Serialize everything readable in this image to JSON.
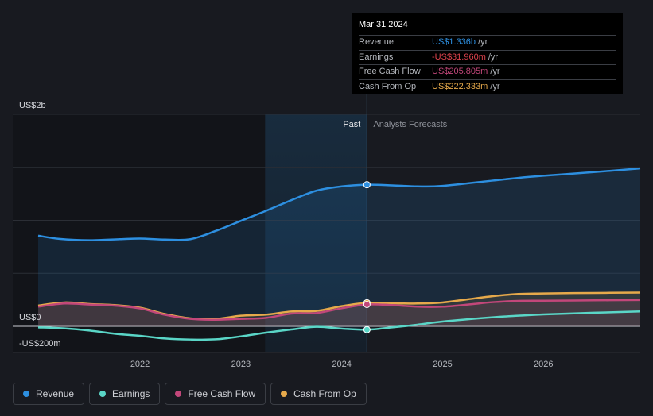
{
  "chart_data": {
    "type": "line",
    "title": "",
    "xlabel": "",
    "ylabel": "",
    "y_unit_labels": [
      "US$2b",
      "US$0",
      "-US$200m"
    ],
    "ylim": [
      -200,
      2000
    ],
    "x_ticks": [
      {
        "label": "2022",
        "t": 2022.0
      },
      {
        "label": "2023",
        "t": 2023.0
      },
      {
        "label": "2024",
        "t": 2024.0
      },
      {
        "label": "2025",
        "t": 2025.0
      },
      {
        "label": "2026",
        "t": 2026.0
      }
    ],
    "xlim": [
      2020.75,
      2026.96
    ],
    "highlight_start": 2023.24,
    "divider": 2024.25,
    "past_label": "Past",
    "forecast_label": "Analysts Forecasts",
    "series": [
      {
        "name": "Revenue",
        "color": "#2d8fe0",
        "fill": true,
        "points": [
          [
            2020.99,
            855
          ],
          [
            2021.2,
            825
          ],
          [
            2021.5,
            812
          ],
          [
            2021.8,
            822
          ],
          [
            2022.0,
            828
          ],
          [
            2022.25,
            818
          ],
          [
            2022.5,
            822
          ],
          [
            2022.75,
            900
          ],
          [
            2023.0,
            995
          ],
          [
            2023.25,
            1090
          ],
          [
            2023.5,
            1190
          ],
          [
            2023.75,
            1280
          ],
          [
            2024.0,
            1320
          ],
          [
            2024.25,
            1336
          ],
          [
            2024.5,
            1330
          ],
          [
            2024.75,
            1320
          ],
          [
            2025.0,
            1325
          ],
          [
            2025.5,
            1375
          ],
          [
            2025.75,
            1400
          ],
          [
            2026.0,
            1420
          ],
          [
            2026.5,
            1455
          ],
          [
            2026.96,
            1490
          ]
        ]
      },
      {
        "name": "Cash From Op",
        "color": "#e6a94b",
        "fill": true,
        "points": [
          [
            2020.99,
            195
          ],
          [
            2021.25,
            225
          ],
          [
            2021.5,
            210
          ],
          [
            2021.75,
            200
          ],
          [
            2022.0,
            175
          ],
          [
            2022.25,
            115
          ],
          [
            2022.5,
            75
          ],
          [
            2022.75,
            70
          ],
          [
            2023.0,
            100
          ],
          [
            2023.25,
            110
          ],
          [
            2023.5,
            140
          ],
          [
            2023.75,
            145
          ],
          [
            2024.0,
            190
          ],
          [
            2024.25,
            222
          ],
          [
            2024.5,
            218
          ],
          [
            2024.75,
            215
          ],
          [
            2025.0,
            225
          ],
          [
            2025.25,
            255
          ],
          [
            2025.5,
            285
          ],
          [
            2025.75,
            305
          ],
          [
            2026.0,
            310
          ],
          [
            2026.5,
            315
          ],
          [
            2026.96,
            318
          ]
        ]
      },
      {
        "name": "Free Cash Flow",
        "color": "#c2477a",
        "fill": true,
        "points": [
          [
            2020.99,
            185
          ],
          [
            2021.25,
            215
          ],
          [
            2021.5,
            205
          ],
          [
            2021.75,
            195
          ],
          [
            2022.0,
            168
          ],
          [
            2022.25,
            108
          ],
          [
            2022.5,
            70
          ],
          [
            2022.75,
            62
          ],
          [
            2023.0,
            70
          ],
          [
            2023.25,
            80
          ],
          [
            2023.5,
            120
          ],
          [
            2023.75,
            125
          ],
          [
            2024.0,
            170
          ],
          [
            2024.25,
            206
          ],
          [
            2024.5,
            200
          ],
          [
            2024.75,
            185
          ],
          [
            2025.0,
            185
          ],
          [
            2025.25,
            205
          ],
          [
            2025.5,
            228
          ],
          [
            2025.75,
            240
          ],
          [
            2026.0,
            242
          ],
          [
            2026.5,
            245
          ],
          [
            2026.96,
            248
          ]
        ]
      },
      {
        "name": "Earnings",
        "color": "#5ad6c7",
        "fill": false,
        "points": [
          [
            2020.99,
            -10
          ],
          [
            2021.25,
            -20
          ],
          [
            2021.5,
            -40
          ],
          [
            2021.75,
            -70
          ],
          [
            2022.0,
            -90
          ],
          [
            2022.25,
            -115
          ],
          [
            2022.5,
            -125
          ],
          [
            2022.75,
            -123
          ],
          [
            2023.0,
            -95
          ],
          [
            2023.25,
            -60
          ],
          [
            2023.5,
            -30
          ],
          [
            2023.75,
            -5
          ],
          [
            2024.0,
            -22
          ],
          [
            2024.25,
            -32
          ],
          [
            2024.5,
            -10
          ],
          [
            2024.75,
            15
          ],
          [
            2025.0,
            45
          ],
          [
            2025.5,
            85
          ],
          [
            2025.75,
            100
          ],
          [
            2026.0,
            112
          ],
          [
            2026.5,
            128
          ],
          [
            2026.96,
            140
          ]
        ]
      }
    ],
    "markers_at": 2024.25
  },
  "tooltip": {
    "date": "Mar 31 2024",
    "rows": [
      {
        "label": "Revenue",
        "value": "US$1.336b",
        "unit": "/yr",
        "color": "#2d8fe0"
      },
      {
        "label": "Earnings",
        "value": "-US$31.960m",
        "unit": "/yr",
        "color": "#e0434d"
      },
      {
        "label": "Free Cash Flow",
        "value": "US$205.805m",
        "unit": "/yr",
        "color": "#c2477a"
      },
      {
        "label": "Cash From Op",
        "value": "US$222.333m",
        "unit": "/yr",
        "color": "#e6a94b"
      }
    ]
  },
  "legend": [
    {
      "label": "Revenue",
      "color": "#2d8fe0"
    },
    {
      "label": "Earnings",
      "color": "#5ad6c7"
    },
    {
      "label": "Free Cash Flow",
      "color": "#c2477a"
    },
    {
      "label": "Cash From Op",
      "color": "#e6a94b"
    }
  ]
}
